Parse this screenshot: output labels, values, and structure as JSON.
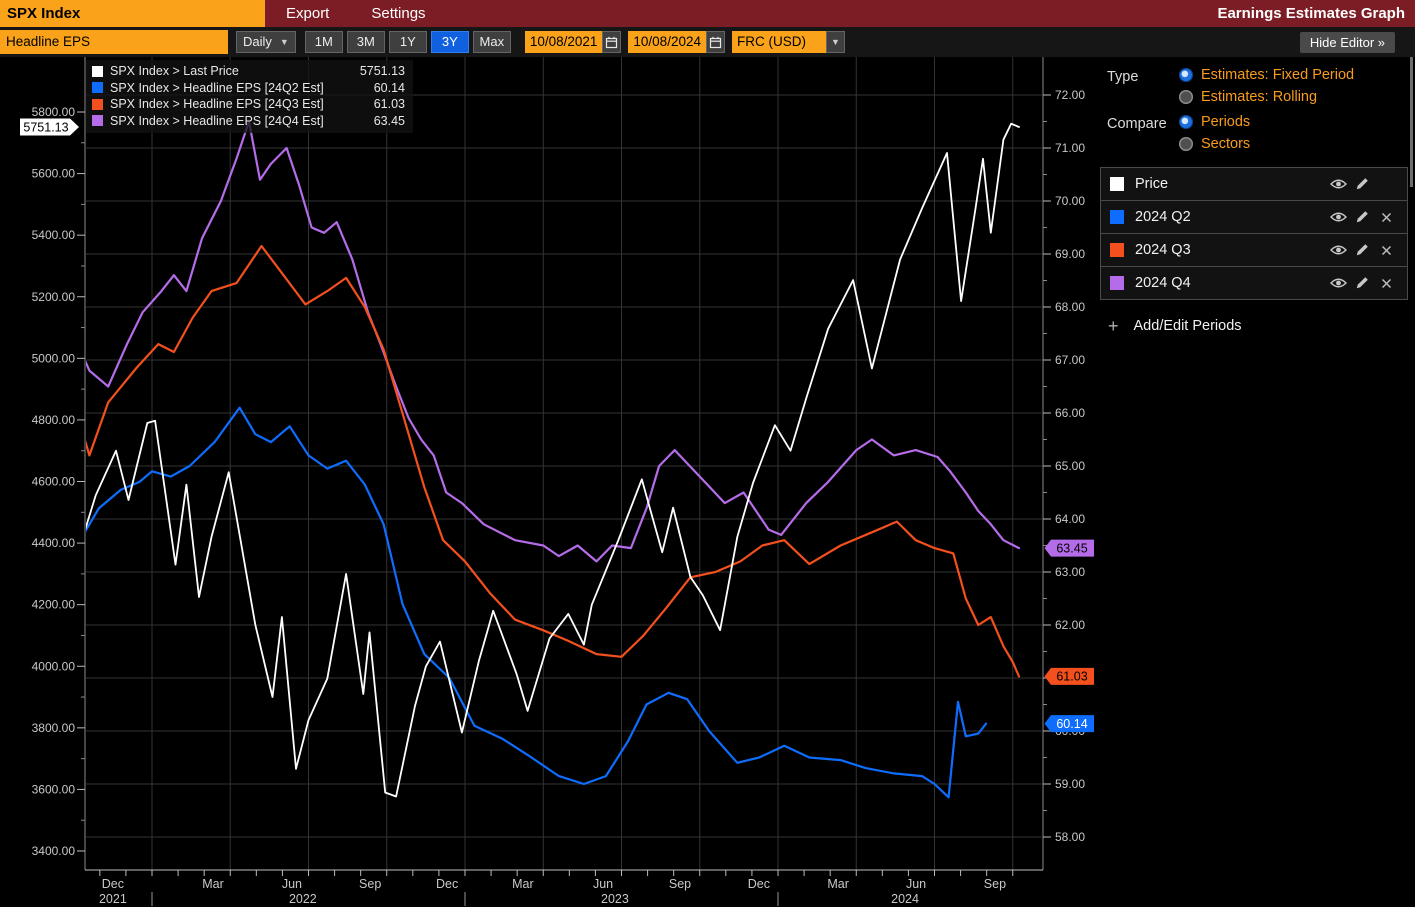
{
  "colors": {
    "amber": "#F9A21A",
    "titlebar_red": "#7C1C24",
    "selected_blue": "#1160E0",
    "price": "#FFFFFF",
    "q2_blue": "#0E6DFD",
    "q3_orange": "#F4501E",
    "q4_purple": "#B56CE8",
    "grid": "#343434",
    "axis_text": "#C8C8C8"
  },
  "title_bar": {
    "ticker": "SPX Index",
    "menu": [
      "Export",
      "Settings"
    ],
    "app_title": "Earnings Estimates Graph"
  },
  "toolbar": {
    "field_value": "Headline EPS",
    "frequency": "Daily",
    "ranges": [
      "1M",
      "3M",
      "1Y",
      "3Y",
      "Max"
    ],
    "selected_range": "3Y",
    "date_from": "10/08/2021",
    "date_to": "10/08/2024",
    "security": "FRC (USD)",
    "hide_editor_label": "Hide Editor »"
  },
  "legend": {
    "rows": [
      {
        "label": "SPX Index > Last Price",
        "value": "5751.13",
        "color": "#FFFFFF"
      },
      {
        "label": "SPX Index > Headline EPS [24Q2 Est]",
        "value": "60.14",
        "color": "#0E6DFD"
      },
      {
        "label": "SPX Index > Headline EPS [24Q3 Est]",
        "value": "61.03",
        "color": "#F4501E"
      },
      {
        "label": "SPX Index > Headline EPS [24Q4 Est]",
        "value": "63.45",
        "color": "#B56CE8"
      }
    ]
  },
  "editor": {
    "type_label": "Type",
    "type_options": [
      {
        "label": "Estimates: Fixed Period",
        "selected": true
      },
      {
        "label": "Estimates: Rolling",
        "selected": false
      }
    ],
    "compare_label": "Compare",
    "compare_options": [
      {
        "label": "Periods",
        "selected": true
      },
      {
        "label": "Sectors",
        "selected": false
      }
    ],
    "series": [
      {
        "label": "Price",
        "color": "#FFFFFF",
        "removable": false
      },
      {
        "label": "2024 Q2",
        "color": "#0E6DFD",
        "removable": true
      },
      {
        "label": "2024 Q3",
        "color": "#F4501E",
        "removable": true
      },
      {
        "label": "2024 Q4",
        "color": "#B56CE8",
        "removable": true
      }
    ],
    "add_label": "Add/Edit Periods"
  },
  "chart_data": {
    "type": "line",
    "x_start": "10/08/2021",
    "x_end": "10/08/2024",
    "left_axis": {
      "ticks": [
        5800,
        5600,
        5400,
        5200,
        5000,
        4800,
        4600,
        4400,
        4200,
        4000,
        3800,
        3600,
        3400
      ],
      "minor_step": 100,
      "format_decimals": 2
    },
    "right_axis": {
      "ticks": [
        72,
        71,
        70,
        69,
        68,
        67,
        66,
        65,
        64,
        63,
        62,
        61,
        60,
        59,
        58
      ],
      "minor_step": 0.5,
      "format_decimals": 2
    },
    "x_labels": [
      {
        "t": 2021.875,
        "text": "Dec"
      },
      {
        "t": 2022.195,
        "text": "Mar"
      },
      {
        "t": 2022.447,
        "text": "Jun"
      },
      {
        "t": 2022.697,
        "text": "Sep"
      },
      {
        "t": 2022.943,
        "text": "Dec"
      },
      {
        "t": 2023.185,
        "text": "Mar"
      },
      {
        "t": 2023.441,
        "text": "Jun"
      },
      {
        "t": 2023.687,
        "text": "Sep"
      },
      {
        "t": 2023.939,
        "text": "Dec"
      },
      {
        "t": 2024.192,
        "text": "Mar"
      },
      {
        "t": 2024.441,
        "text": "Jun"
      },
      {
        "t": 2024.693,
        "text": "Sep"
      }
    ],
    "year_labels": [
      {
        "t": 2021.875,
        "text": "2021"
      },
      {
        "t": 2022.482,
        "text": "2022"
      },
      {
        "t": 2023.479,
        "text": "2023"
      },
      {
        "t": 2024.406,
        "text": "2024"
      }
    ],
    "year_separators_t": [
      2022.0,
      2023.0,
      2024.0
    ],
    "callouts": [
      {
        "axis": "left",
        "value": 5751.13,
        "label": "5751.13",
        "bg": "#FFFFFF",
        "fg": "#000000"
      },
      {
        "axis": "right",
        "value": 63.45,
        "label": "63.45",
        "bg": "#B56CE8",
        "fg": "#000000"
      },
      {
        "axis": "right",
        "value": 61.03,
        "label": "61.03",
        "bg": "#F4501E",
        "fg": "#000000"
      },
      {
        "axis": "right",
        "value": 60.14,
        "label": "60.14",
        "bg": "#0E6DFD",
        "fg": "#FFFFFF"
      }
    ],
    "series": [
      {
        "name": "SPX Index > Headline EPS [24Q4 Est]",
        "axis": "right",
        "color": "#B56CE8",
        "width": 2.2,
        "points": [
          [
            2021.77,
            67.2
          ],
          [
            2021.8,
            66.8
          ],
          [
            2021.86,
            66.5
          ],
          [
            2021.92,
            67.3
          ],
          [
            2021.97,
            67.9
          ],
          [
            2022.03,
            68.3
          ],
          [
            2022.07,
            68.6
          ],
          [
            2022.11,
            68.3
          ],
          [
            2022.16,
            69.3
          ],
          [
            2022.22,
            70.0
          ],
          [
            2022.27,
            70.8
          ],
          [
            2022.31,
            71.5
          ],
          [
            2022.345,
            70.4
          ],
          [
            2022.38,
            70.7
          ],
          [
            2022.43,
            71.0
          ],
          [
            2022.47,
            70.3
          ],
          [
            2022.51,
            69.5
          ],
          [
            2022.55,
            69.4
          ],
          [
            2022.59,
            69.6
          ],
          [
            2022.64,
            68.9
          ],
          [
            2022.69,
            67.9
          ],
          [
            2022.73,
            67.3
          ],
          [
            2022.78,
            66.5
          ],
          [
            2022.82,
            65.9
          ],
          [
            2022.86,
            65.5
          ],
          [
            2022.9,
            65.2
          ],
          [
            2022.94,
            64.5
          ],
          [
            2022.99,
            64.3
          ],
          [
            2023.06,
            63.9
          ],
          [
            2023.16,
            63.6
          ],
          [
            2023.25,
            63.5
          ],
          [
            2023.3,
            63.3
          ],
          [
            2023.36,
            63.5
          ],
          [
            2023.42,
            63.2
          ],
          [
            2023.47,
            63.5
          ],
          [
            2023.53,
            63.45
          ],
          [
            2023.58,
            64.2
          ],
          [
            2023.62,
            65.0
          ],
          [
            2023.67,
            65.3
          ],
          [
            2023.75,
            64.8
          ],
          [
            2023.83,
            64.3
          ],
          [
            2023.89,
            64.5
          ],
          [
            2023.97,
            63.8
          ],
          [
            2024.01,
            63.7
          ],
          [
            2024.09,
            64.3
          ],
          [
            2024.16,
            64.7
          ],
          [
            2024.25,
            65.3
          ],
          [
            2024.3,
            65.5
          ],
          [
            2024.37,
            65.2
          ],
          [
            2024.44,
            65.3
          ],
          [
            2024.51,
            65.17
          ],
          [
            2024.55,
            64.9
          ],
          [
            2024.6,
            64.5
          ],
          [
            2024.64,
            64.15
          ],
          [
            2024.68,
            63.9
          ],
          [
            2024.72,
            63.6
          ],
          [
            2024.77,
            63.45
          ]
        ]
      },
      {
        "name": "SPX Index > Headline EPS [24Q3 Est]",
        "axis": "right",
        "color": "#F4501E",
        "width": 2.2,
        "points": [
          [
            2021.77,
            65.8
          ],
          [
            2021.8,
            65.2
          ],
          [
            2021.86,
            66.2
          ],
          [
            2021.95,
            66.85
          ],
          [
            2022.02,
            67.3
          ],
          [
            2022.07,
            67.15
          ],
          [
            2022.13,
            67.8
          ],
          [
            2022.19,
            68.3
          ],
          [
            2022.27,
            68.45
          ],
          [
            2022.35,
            69.15
          ],
          [
            2022.42,
            68.6
          ],
          [
            2022.49,
            68.05
          ],
          [
            2022.56,
            68.3
          ],
          [
            2022.62,
            68.55
          ],
          [
            2022.68,
            68.0
          ],
          [
            2022.74,
            67.2
          ],
          [
            2022.8,
            66.0
          ],
          [
            2022.87,
            64.6
          ],
          [
            2022.93,
            63.6
          ],
          [
            2023.0,
            63.2
          ],
          [
            2023.08,
            62.6
          ],
          [
            2023.16,
            62.1
          ],
          [
            2023.25,
            61.9
          ],
          [
            2023.33,
            61.7
          ],
          [
            2023.42,
            61.45
          ],
          [
            2023.5,
            61.4
          ],
          [
            2023.57,
            61.8
          ],
          [
            2023.64,
            62.3
          ],
          [
            2023.72,
            62.9
          ],
          [
            2023.8,
            63.0
          ],
          [
            2023.88,
            63.2
          ],
          [
            2023.95,
            63.5
          ],
          [
            2024.02,
            63.6
          ],
          [
            2024.1,
            63.15
          ],
          [
            2024.2,
            63.5
          ],
          [
            2024.3,
            63.75
          ],
          [
            2024.38,
            63.95
          ],
          [
            2024.44,
            63.6
          ],
          [
            2024.5,
            63.45
          ],
          [
            2024.56,
            63.35
          ],
          [
            2024.6,
            62.5
          ],
          [
            2024.64,
            62.0
          ],
          [
            2024.68,
            62.15
          ],
          [
            2024.72,
            61.6
          ],
          [
            2024.75,
            61.3
          ],
          [
            2024.77,
            61.03
          ]
        ]
      },
      {
        "name": "SPX Index > Headline EPS [24Q2 Est]",
        "axis": "right",
        "color": "#0E6DFD",
        "width": 2.2,
        "points": [
          [
            2021.77,
            63.6
          ],
          [
            2021.83,
            64.2
          ],
          [
            2021.9,
            64.55
          ],
          [
            2021.96,
            64.7
          ],
          [
            2022.0,
            64.9
          ],
          [
            2022.06,
            64.8
          ],
          [
            2022.12,
            65.0
          ],
          [
            2022.2,
            65.45
          ],
          [
            2022.28,
            66.1
          ],
          [
            2022.33,
            65.6
          ],
          [
            2022.38,
            65.45
          ],
          [
            2022.44,
            65.75
          ],
          [
            2022.5,
            65.2
          ],
          [
            2022.56,
            64.95
          ],
          [
            2022.62,
            65.1
          ],
          [
            2022.68,
            64.65
          ],
          [
            2022.74,
            63.9
          ],
          [
            2022.8,
            62.4
          ],
          [
            2022.87,
            61.45
          ],
          [
            2022.95,
            61.0
          ],
          [
            2023.03,
            60.1
          ],
          [
            2023.12,
            59.85
          ],
          [
            2023.2,
            59.55
          ],
          [
            2023.3,
            59.15
          ],
          [
            2023.38,
            59.0
          ],
          [
            2023.45,
            59.15
          ],
          [
            2023.52,
            59.8
          ],
          [
            2023.58,
            60.5
          ],
          [
            2023.65,
            60.72
          ],
          [
            2023.71,
            60.6
          ],
          [
            2023.78,
            60.0
          ],
          [
            2023.87,
            59.4
          ],
          [
            2023.94,
            59.5
          ],
          [
            2024.02,
            59.72
          ],
          [
            2024.1,
            59.5
          ],
          [
            2024.2,
            59.45
          ],
          [
            2024.28,
            59.3
          ],
          [
            2024.37,
            59.2
          ],
          [
            2024.46,
            59.15
          ],
          [
            2024.5,
            59.0
          ],
          [
            2024.545,
            58.75
          ],
          [
            2024.575,
            60.55
          ],
          [
            2024.6,
            59.9
          ],
          [
            2024.64,
            59.95
          ],
          [
            2024.665,
            60.14
          ]
        ]
      },
      {
        "name": "SPX Index > Last Price",
        "axis": "left",
        "color": "#FFFFFF",
        "width": 1.8,
        "points": [
          [
            2021.77,
            4390
          ],
          [
            2021.82,
            4555
          ],
          [
            2021.885,
            4700
          ],
          [
            2021.925,
            4540
          ],
          [
            2021.985,
            4790
          ],
          [
            2022.01,
            4797
          ],
          [
            2022.075,
            4330
          ],
          [
            2022.11,
            4590
          ],
          [
            2022.15,
            4225
          ],
          [
            2022.19,
            4420
          ],
          [
            2022.245,
            4630
          ],
          [
            2022.33,
            4135
          ],
          [
            2022.385,
            3900
          ],
          [
            2022.415,
            4160
          ],
          [
            2022.46,
            3667
          ],
          [
            2022.5,
            3825
          ],
          [
            2022.56,
            3960
          ],
          [
            2022.62,
            4300
          ],
          [
            2022.675,
            3910
          ],
          [
            2022.695,
            4110
          ],
          [
            2022.745,
            3590
          ],
          [
            2022.78,
            3577
          ],
          [
            2022.84,
            3870
          ],
          [
            2022.875,
            4000
          ],
          [
            2022.92,
            4080
          ],
          [
            2022.99,
            3785
          ],
          [
            2023.045,
            4020
          ],
          [
            2023.09,
            4180
          ],
          [
            2023.165,
            3975
          ],
          [
            2023.2,
            3855
          ],
          [
            2023.27,
            4090
          ],
          [
            2023.33,
            4170
          ],
          [
            2023.38,
            4070
          ],
          [
            2023.405,
            4200
          ],
          [
            2023.49,
            4410
          ],
          [
            2023.565,
            4607
          ],
          [
            2023.63,
            4370
          ],
          [
            2023.665,
            4515
          ],
          [
            2023.72,
            4290
          ],
          [
            2023.76,
            4230
          ],
          [
            2023.815,
            4117
          ],
          [
            2023.87,
            4420
          ],
          [
            2023.92,
            4595
          ],
          [
            2023.99,
            4783
          ],
          [
            2024.04,
            4700
          ],
          [
            2024.09,
            4870
          ],
          [
            2024.16,
            5096
          ],
          [
            2024.24,
            5254
          ],
          [
            2024.3,
            4967
          ],
          [
            2024.39,
            5321
          ],
          [
            2024.46,
            5487
          ],
          [
            2024.54,
            5667
          ],
          [
            2024.585,
            5186
          ],
          [
            2024.63,
            5480
          ],
          [
            2024.655,
            5648
          ],
          [
            2024.68,
            5408
          ],
          [
            2024.72,
            5710
          ],
          [
            2024.745,
            5762
          ],
          [
            2024.77,
            5751.13
          ]
        ]
      }
    ]
  }
}
